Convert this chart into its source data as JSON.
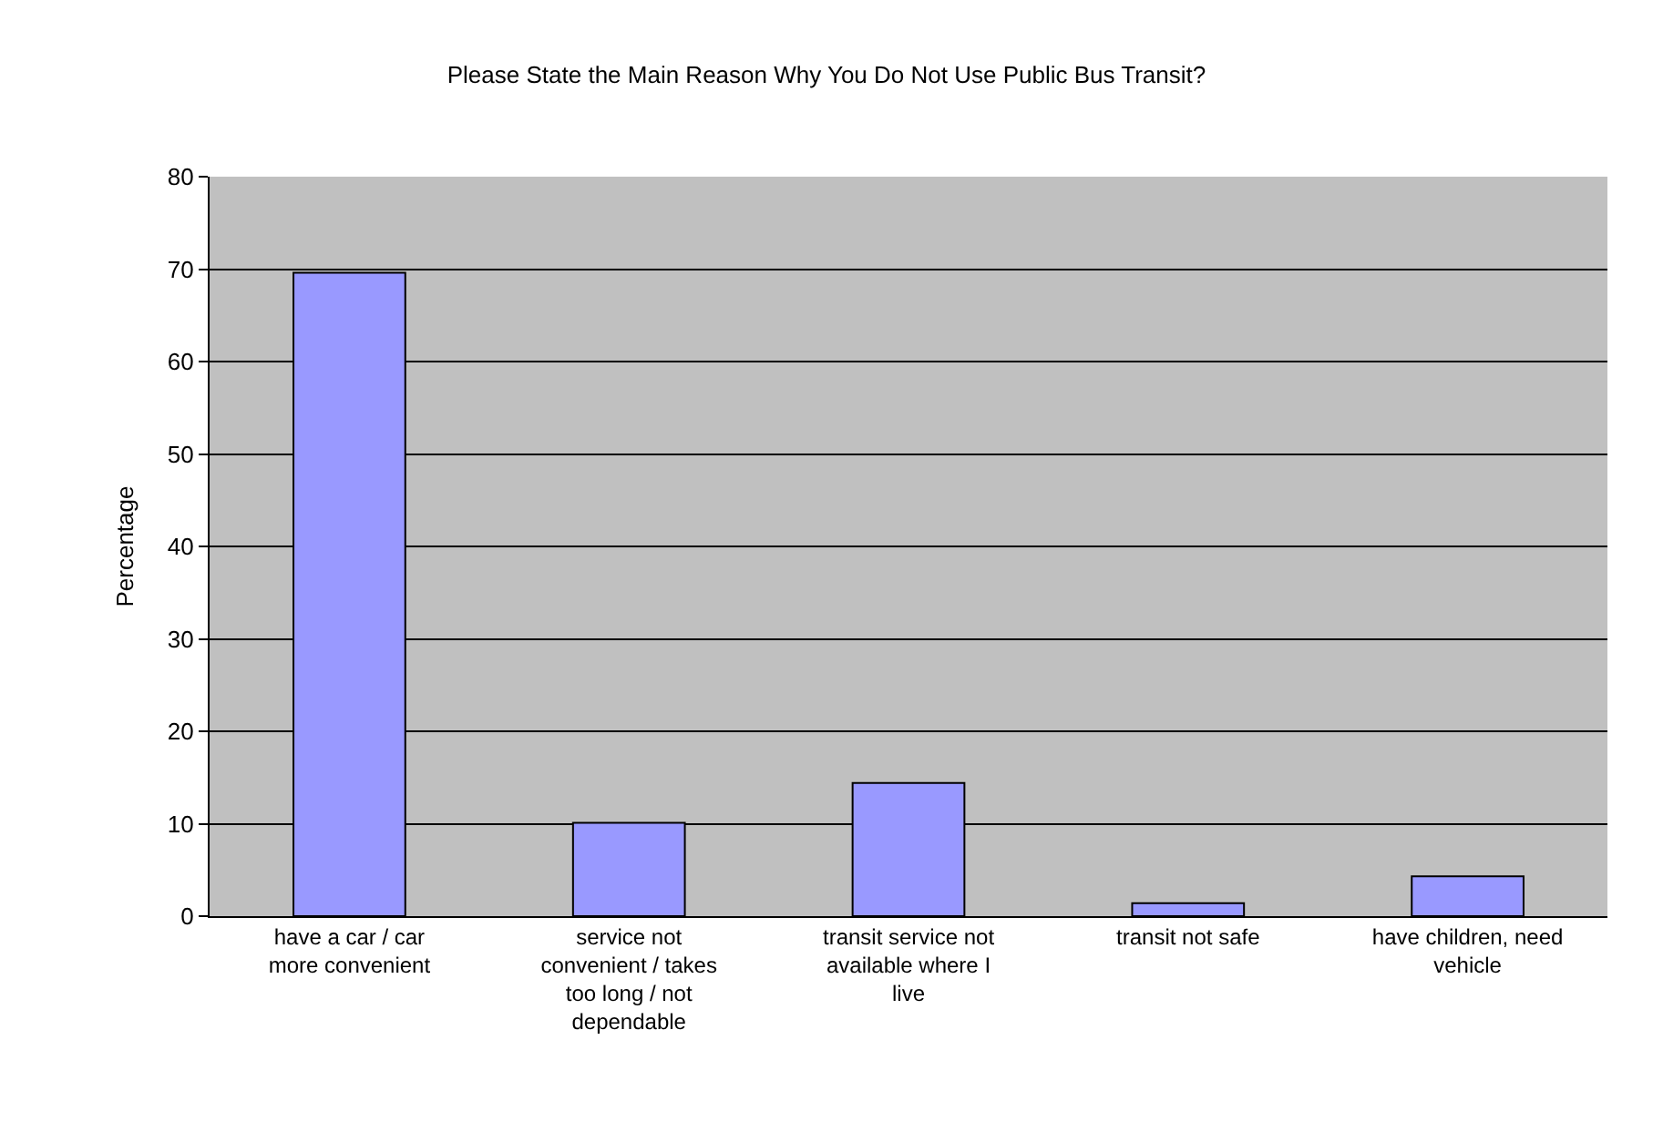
{
  "chart_data": {
    "type": "bar",
    "title": "Please State the Main Reason Why You Do Not Use Public Bus Transit?",
    "ylabel": "Percentage",
    "categories": [
      "have a car / car more convenient",
      "service not convenient / takes too long / not dependable",
      "transit service not available where I live",
      "transit not safe",
      "have children, need vehicle"
    ],
    "values": [
      69.6,
      10.1,
      14.4,
      1.4,
      4.3
    ],
    "color": "#9999ff",
    "ylim": [
      0,
      80
    ],
    "yticks": [
      0,
      10,
      20,
      30,
      40,
      50,
      60,
      70,
      80
    ],
    "grid": "y",
    "legend": false
  }
}
